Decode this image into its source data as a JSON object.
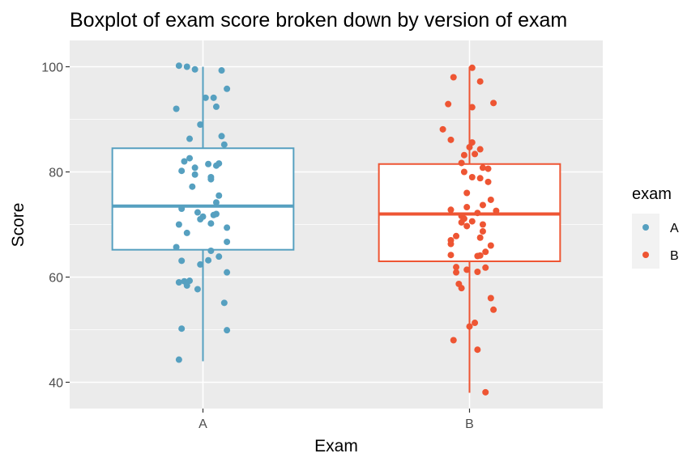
{
  "chart_data": {
    "type": "boxplot",
    "title": "Boxplot of exam score broken down by version of exam",
    "xlabel": "Exam",
    "ylabel": "Score",
    "categories": [
      "A",
      "B"
    ],
    "ylim": [
      35,
      105
    ],
    "yticks": [
      40,
      60,
      80,
      100
    ],
    "grid": true,
    "legend": {
      "title": "exam",
      "position": "right",
      "entries": [
        {
          "label": "A",
          "color": "#56A0C0"
        },
        {
          "label": "B",
          "color": "#EE5533"
        }
      ]
    },
    "boxes": [
      {
        "category": "A",
        "color": "#56A0C0",
        "whisker_low": 44,
        "q1": 65.2,
        "median": 73.5,
        "q3": 84.5,
        "whisker_high": 100,
        "points": [
          {
            "x": -0.09,
            "y": 100.2
          },
          {
            "x": -0.06,
            "y": 100.0
          },
          {
            "x": -0.03,
            "y": 99.5
          },
          {
            "x": 0.07,
            "y": 99.3
          },
          {
            "x": 0.09,
            "y": 95.8
          },
          {
            "x": 0.01,
            "y": 94.1
          },
          {
            "x": 0.04,
            "y": 94.1
          },
          {
            "x": -0.1,
            "y": 92.0
          },
          {
            "x": 0.05,
            "y": 92.4
          },
          {
            "x": -0.01,
            "y": 89.0
          },
          {
            "x": -0.05,
            "y": 86.3
          },
          {
            "x": 0.07,
            "y": 86.8
          },
          {
            "x": 0.08,
            "y": 85.2
          },
          {
            "x": -0.07,
            "y": 82.0
          },
          {
            "x": -0.05,
            "y": 82.6
          },
          {
            "x": 0.05,
            "y": 81.2
          },
          {
            "x": 0.06,
            "y": 81.6
          },
          {
            "x": -0.03,
            "y": 80.8
          },
          {
            "x": 0.02,
            "y": 81.5
          },
          {
            "x": -0.08,
            "y": 80.2
          },
          {
            "x": -0.03,
            "y": 79.5
          },
          {
            "x": 0.03,
            "y": 79.0
          },
          {
            "x": 0.03,
            "y": 78.6
          },
          {
            "x": -0.04,
            "y": 77.2
          },
          {
            "x": 0.06,
            "y": 75.5
          },
          {
            "x": 0.05,
            "y": 74.2
          },
          {
            "x": -0.08,
            "y": 73.0
          },
          {
            "x": -0.02,
            "y": 72.3
          },
          {
            "x": 0.05,
            "y": 72.0
          },
          {
            "x": 0.04,
            "y": 71.8
          },
          {
            "x": 0.0,
            "y": 71.5
          },
          {
            "x": -0.01,
            "y": 71.0
          },
          {
            "x": -0.09,
            "y": 70.0
          },
          {
            "x": 0.03,
            "y": 70.2
          },
          {
            "x": 0.09,
            "y": 69.4
          },
          {
            "x": -0.06,
            "y": 68.4
          },
          {
            "x": 0.09,
            "y": 66.7
          },
          {
            "x": -0.1,
            "y": 65.7
          },
          {
            "x": 0.03,
            "y": 65.0
          },
          {
            "x": 0.06,
            "y": 63.9
          },
          {
            "x": -0.08,
            "y": 63.1
          },
          {
            "x": 0.02,
            "y": 63.2
          },
          {
            "x": -0.01,
            "y": 62.4
          },
          {
            "x": 0.09,
            "y": 60.9
          },
          {
            "x": -0.09,
            "y": 59.0
          },
          {
            "x": -0.07,
            "y": 59.2
          },
          {
            "x": -0.05,
            "y": 59.3
          },
          {
            "x": -0.06,
            "y": 58.4
          },
          {
            "x": -0.02,
            "y": 57.7
          },
          {
            "x": 0.08,
            "y": 55.1
          },
          {
            "x": -0.08,
            "y": 50.2
          },
          {
            "x": 0.09,
            "y": 49.9
          },
          {
            "x": -0.09,
            "y": 44.3
          }
        ]
      },
      {
        "category": "B",
        "color": "#EE5533",
        "whisker_low": 38,
        "q1": 63.0,
        "median": 72.0,
        "q3": 81.5,
        "whisker_high": 100,
        "points": [
          {
            "x": 0.01,
            "y": 99.8
          },
          {
            "x": -0.06,
            "y": 98.0
          },
          {
            "x": 0.04,
            "y": 97.2
          },
          {
            "x": -0.08,
            "y": 92.9
          },
          {
            "x": 0.01,
            "y": 92.3
          },
          {
            "x": 0.09,
            "y": 93.1
          },
          {
            "x": -0.1,
            "y": 88.1
          },
          {
            "x": -0.07,
            "y": 86.1
          },
          {
            "x": 0.01,
            "y": 85.6
          },
          {
            "x": 0.0,
            "y": 84.7
          },
          {
            "x": 0.04,
            "y": 84.3
          },
          {
            "x": -0.02,
            "y": 83.2
          },
          {
            "x": 0.02,
            "y": 83.4
          },
          {
            "x": -0.03,
            "y": 81.7
          },
          {
            "x": 0.05,
            "y": 80.8
          },
          {
            "x": 0.07,
            "y": 80.6
          },
          {
            "x": -0.02,
            "y": 80.0
          },
          {
            "x": 0.01,
            "y": 79.0
          },
          {
            "x": 0.04,
            "y": 78.8
          },
          {
            "x": 0.07,
            "y": 78.1
          },
          {
            "x": -0.01,
            "y": 76.0
          },
          {
            "x": 0.08,
            "y": 74.7
          },
          {
            "x": 0.05,
            "y": 73.7
          },
          {
            "x": -0.07,
            "y": 72.8
          },
          {
            "x": -0.01,
            "y": 73.3
          },
          {
            "x": 0.1,
            "y": 72.6
          },
          {
            "x": 0.03,
            "y": 72.2
          },
          {
            "x": -0.03,
            "y": 71.6
          },
          {
            "x": -0.02,
            "y": 71.1
          },
          {
            "x": -0.03,
            "y": 70.4
          },
          {
            "x": 0.01,
            "y": 70.6
          },
          {
            "x": 0.05,
            "y": 70.0
          },
          {
            "x": -0.01,
            "y": 69.7
          },
          {
            "x": 0.05,
            "y": 68.7
          },
          {
            "x": -0.05,
            "y": 67.8
          },
          {
            "x": 0.04,
            "y": 67.5
          },
          {
            "x": -0.07,
            "y": 67.0
          },
          {
            "x": -0.07,
            "y": 66.3
          },
          {
            "x": 0.08,
            "y": 66.0
          },
          {
            "x": 0.06,
            "y": 64.8
          },
          {
            "x": -0.07,
            "y": 64.2
          },
          {
            "x": 0.03,
            "y": 64.0
          },
          {
            "x": 0.04,
            "y": 64.1
          },
          {
            "x": -0.05,
            "y": 61.9
          },
          {
            "x": 0.06,
            "y": 61.8
          },
          {
            "x": -0.01,
            "y": 61.4
          },
          {
            "x": -0.05,
            "y": 60.9
          },
          {
            "x": 0.03,
            "y": 61.0
          },
          {
            "x": -0.04,
            "y": 58.7
          },
          {
            "x": -0.03,
            "y": 57.9
          },
          {
            "x": 0.08,
            "y": 56.0
          },
          {
            "x": 0.09,
            "y": 53.8
          },
          {
            "x": 0.02,
            "y": 51.3
          },
          {
            "x": 0.0,
            "y": 50.6
          },
          {
            "x": -0.06,
            "y": 48.0
          },
          {
            "x": 0.03,
            "y": 46.2
          },
          {
            "x": 0.06,
            "y": 38.1
          }
        ]
      }
    ]
  }
}
